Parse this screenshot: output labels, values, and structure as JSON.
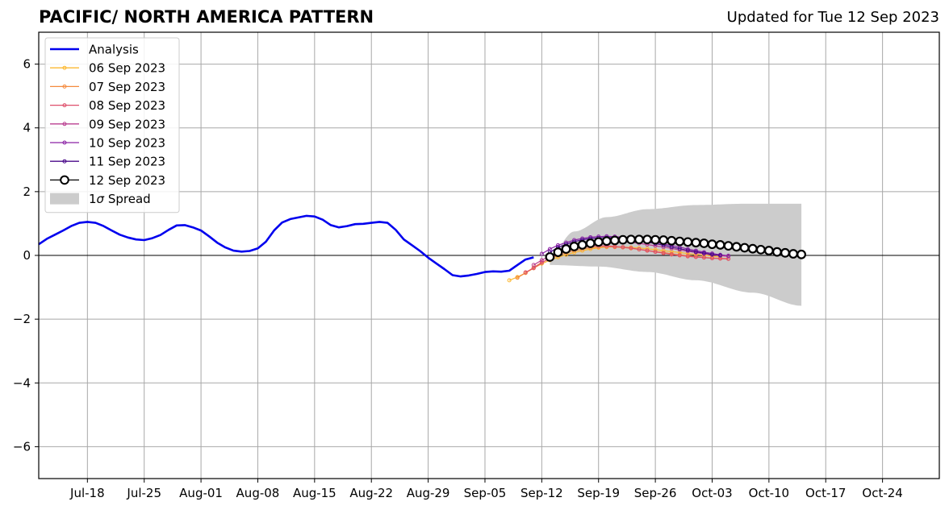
{
  "chart_data": {
    "type": "line",
    "title": "PACIFIC/ NORTH AMERICA PATTERN",
    "subtitle": "Updated for Tue 12 Sep 2023",
    "xlabel": "",
    "ylabel": "",
    "x_range": [
      "2023-07-12",
      "2023-10-31"
    ],
    "ylim": [
      -7,
      7
    ],
    "yticks": [
      -6,
      -4,
      -2,
      0,
      2,
      4,
      6
    ],
    "ytick_labels": [
      "−6",
      "−4",
      "−2",
      "0",
      "2",
      "4",
      "6"
    ],
    "xticks": [
      {
        "date": "2023-07-18",
        "label": "Jul-18"
      },
      {
        "date": "2023-07-25",
        "label": "Jul-25"
      },
      {
        "date": "2023-08-01",
        "label": "Aug-01"
      },
      {
        "date": "2023-08-08",
        "label": "Aug-08"
      },
      {
        "date": "2023-08-15",
        "label": "Aug-15"
      },
      {
        "date": "2023-08-22",
        "label": "Aug-22"
      },
      {
        "date": "2023-08-29",
        "label": "Aug-29"
      },
      {
        "date": "2023-09-05",
        "label": "Sep-05"
      },
      {
        "date": "2023-09-12",
        "label": "Sep-12"
      },
      {
        "date": "2023-09-19",
        "label": "Sep-19"
      },
      {
        "date": "2023-09-26",
        "label": "Sep-26"
      },
      {
        "date": "2023-10-03",
        "label": "Oct-03"
      },
      {
        "date": "2023-10-10",
        "label": "Oct-10"
      },
      {
        "date": "2023-10-17",
        "label": "Oct-17"
      },
      {
        "date": "2023-10-24",
        "label": "Oct-24"
      }
    ],
    "grid": true,
    "legend_position": "top-left",
    "analysis": {
      "name": "Analysis",
      "color": "#0000ee",
      "start_date": "2023-07-12",
      "values": [
        0.35,
        0.52,
        0.65,
        0.78,
        0.92,
        1.02,
        1.05,
        1.02,
        0.92,
        0.78,
        0.65,
        0.56,
        0.5,
        0.48,
        0.54,
        0.64,
        0.8,
        0.94,
        0.95,
        0.88,
        0.78,
        0.6,
        0.4,
        0.25,
        0.15,
        0.12,
        0.14,
        0.22,
        0.43,
        0.78,
        1.03,
        1.14,
        1.19,
        1.24,
        1.22,
        1.12,
        0.95,
        0.88,
        0.92,
        0.98,
        0.99,
        1.02,
        1.05,
        1.02,
        0.8,
        0.5,
        0.32,
        0.14,
        -0.07,
        -0.25,
        -0.43,
        -0.62,
        -0.66,
        -0.63,
        -0.58,
        -0.52,
        -0.5,
        -0.51,
        -0.48,
        -0.3,
        -0.13,
        -0.06
      ]
    },
    "forecasts": [
      {
        "name": "06 Sep 2023",
        "color": "#fcb830",
        "start_date": "2023-09-08",
        "values": [
          -0.78,
          -0.68,
          -0.55,
          -0.4,
          -0.26,
          -0.15,
          -0.06,
          0.02,
          0.09,
          0.15,
          0.2,
          0.24,
          0.26,
          0.27,
          0.26,
          0.25,
          0.23,
          0.21,
          0.18,
          0.15,
          0.12,
          0.09,
          0.06,
          0.03,
          0.01,
          -0.02,
          -0.04
        ]
      },
      {
        "name": "07 Sep 2023",
        "color": "#f48a3e",
        "start_date": "2023-09-09",
        "values": [
          -0.7,
          -0.55,
          -0.38,
          -0.22,
          -0.1,
          0.0,
          0.08,
          0.15,
          0.2,
          0.24,
          0.26,
          0.27,
          0.26,
          0.25,
          0.22,
          0.19,
          0.16,
          0.12,
          0.09,
          0.05,
          0.02,
          -0.01,
          -0.04,
          -0.06,
          -0.08,
          -0.09,
          -0.1
        ]
      },
      {
        "name": "08 Sep 2023",
        "color": "#de4f6b",
        "start_date": "2023-09-10",
        "values": [
          -0.53,
          -0.4,
          -0.23,
          -0.08,
          0.04,
          0.14,
          0.21,
          0.26,
          0.29,
          0.3,
          0.3,
          0.28,
          0.26,
          0.23,
          0.19,
          0.15,
          0.11,
          0.07,
          0.03,
          0.0,
          -0.03,
          -0.05,
          -0.07,
          -0.09,
          -0.1,
          -0.11
        ]
      },
      {
        "name": "09 Sep 2023",
        "color": "#b93e90",
        "start_date": "2023-09-11",
        "values": [
          -0.3,
          -0.15,
          -0.02,
          0.11,
          0.2,
          0.28,
          0.35,
          0.4,
          0.43,
          0.44,
          0.44,
          0.43,
          0.41,
          0.38,
          0.34,
          0.3,
          0.26,
          0.22,
          0.17,
          0.13,
          0.09,
          0.05,
          0.02,
          -0.01,
          -0.03
        ]
      },
      {
        "name": "10 Sep 2023",
        "color": "#8a22a5",
        "start_date": "2023-09-12",
        "values": [
          0.05,
          0.2,
          0.32,
          0.4,
          0.48,
          0.53,
          0.57,
          0.59,
          0.6,
          0.59,
          0.57,
          0.54,
          0.5,
          0.46,
          0.41,
          0.36,
          0.31,
          0.26,
          0.2,
          0.15,
          0.1,
          0.06,
          0.02,
          -0.01
        ]
      },
      {
        "name": "11 Sep 2023",
        "color": "#4a0a8a",
        "start_date": "2023-09-13",
        "values": [
          0.1,
          0.25,
          0.35,
          0.43,
          0.49,
          0.53,
          0.55,
          0.56,
          0.56,
          0.54,
          0.51,
          0.47,
          0.42,
          0.37,
          0.32,
          0.26,
          0.21,
          0.16,
          0.11,
          0.07,
          0.03,
          0.0
        ]
      },
      {
        "name": "12 Sep 2023",
        "color": "#000000",
        "start_date": "2023-09-13",
        "values": [
          -0.05,
          0.1,
          0.2,
          0.28,
          0.33,
          0.38,
          0.42,
          0.45,
          0.47,
          0.49,
          0.5,
          0.5,
          0.5,
          0.49,
          0.48,
          0.46,
          0.44,
          0.42,
          0.4,
          0.38,
          0.35,
          0.33,
          0.3,
          0.27,
          0.24,
          0.21,
          0.18,
          0.15,
          0.11,
          0.08,
          0.05,
          0.03
        ]
      }
    ],
    "spread": {
      "name": "1σ Spread",
      "legend_prefix": "1",
      "legend_symbol": "σ",
      "legend_suffix": " Spread",
      "color": "#cccccc",
      "start_date": "2023-09-13",
      "end_date": "2023-10-14",
      "upper_knots": [
        [
          0,
          0.0
        ],
        [
          3,
          0.75
        ],
        [
          7,
          1.2
        ],
        [
          12,
          1.45
        ],
        [
          18,
          1.58
        ],
        [
          24,
          1.62
        ],
        [
          31,
          1.62
        ]
      ],
      "lower_knots": [
        [
          0,
          -0.3
        ],
        [
          6,
          -0.35
        ],
        [
          12,
          -0.52
        ],
        [
          18,
          -0.78
        ],
        [
          25,
          -1.17
        ],
        [
          31,
          -1.58
        ]
      ]
    }
  }
}
